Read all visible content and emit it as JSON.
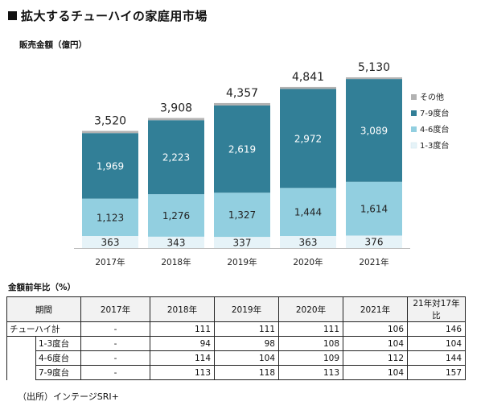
{
  "title": "拡大するチューハイの家庭用市場",
  "unit_label": "販売金額（億円）",
  "chart_data": {
    "type": "bar",
    "stacked": true,
    "categories": [
      "2017年",
      "2018年",
      "2019年",
      "2020年",
      "2021年"
    ],
    "series": [
      {
        "name": "1-3度台",
        "values": [
          363,
          343,
          337,
          363,
          376
        ],
        "color": "#e6f3f8"
      },
      {
        "name": "4-6度台",
        "values": [
          1123,
          1276,
          1327,
          1444,
          1614
        ],
        "color": "#92cfe0"
      },
      {
        "name": "7-9度台",
        "values": [
          1969,
          2223,
          2619,
          2972,
          3089
        ],
        "color": "#327f97"
      },
      {
        "name": "その他",
        "values": [
          65,
          66,
          74,
          62,
          51
        ],
        "color": "#b2b2b2"
      }
    ],
    "totals": [
      "3,520",
      "3,908",
      "4,357",
      "4,841",
      "5,130"
    ],
    "value_labels": {
      "1-3度台": [
        "363",
        "343",
        "337",
        "363",
        "376"
      ],
      "4-6度台": [
        "1,123",
        "1,276",
        "1,327",
        "1,444",
        "1,614"
      ],
      "7-9度台": [
        "1,969",
        "2,223",
        "2,619",
        "2,972",
        "3,089"
      ]
    },
    "legend_order": [
      "その他",
      "7-9度台",
      "4-6度台",
      "1-3度台"
    ],
    "legend_position": "right",
    "ylim": [
      0,
      5130
    ],
    "grid": false
  },
  "table": {
    "label": "金額前年比（%）",
    "headers": [
      "期間",
      "2017年",
      "2018年",
      "2019年",
      "2020年",
      "2021年",
      "21年対17年比"
    ],
    "rows": [
      {
        "label": "チューハイ計",
        "cells": [
          "-",
          "111",
          "111",
          "111",
          "106",
          "146"
        ]
      },
      {
        "label": "1-3度台",
        "cells": [
          "-",
          "94",
          "98",
          "108",
          "104",
          "104"
        ]
      },
      {
        "label": "4-6度台",
        "cells": [
          "-",
          "114",
          "104",
          "109",
          "112",
          "144"
        ]
      },
      {
        "label": "7-9度台",
        "cells": [
          "-",
          "113",
          "118",
          "113",
          "104",
          "157"
        ]
      }
    ]
  },
  "source": "（出所）インテージSRI+"
}
